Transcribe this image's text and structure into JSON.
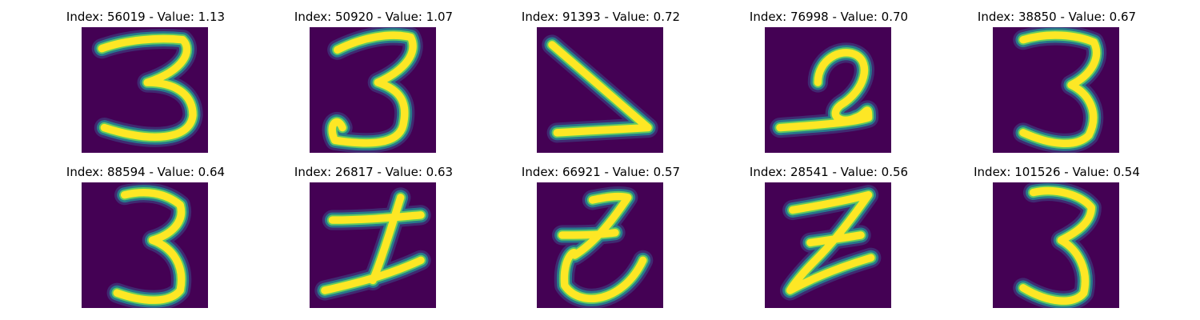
{
  "palette": {
    "background": "#440154",
    "low": "#3e4a89",
    "mid": "#26828e",
    "high": "#5ec962",
    "peak": "#fde725"
  },
  "panels": [
    {
      "title": "Index: 56019 - Value: 1.13",
      "digit": "three-a"
    },
    {
      "title": "Index: 50920 - Value: 1.07",
      "digit": "three-b"
    },
    {
      "title": "Index: 91393 - Value: 0.72",
      "digit": "angle"
    },
    {
      "title": "Index: 76998 - Value: 0.70",
      "digit": "two-curl"
    },
    {
      "title": "Index: 38850 - Value: 0.67",
      "digit": "three-c"
    },
    {
      "title": "Index: 88594 - Value: 0.64",
      "digit": "three-d"
    },
    {
      "title": "Index: 26817 - Value: 0.63",
      "digit": "i-shape"
    },
    {
      "title": "Index: 66921 - Value: 0.57",
      "digit": "z-a"
    },
    {
      "title": "Index: 28541 - Value: 0.56",
      "digit": "z-b"
    },
    {
      "title": "Index: 101526 - Value: 0.54",
      "digit": "three-e"
    }
  ]
}
